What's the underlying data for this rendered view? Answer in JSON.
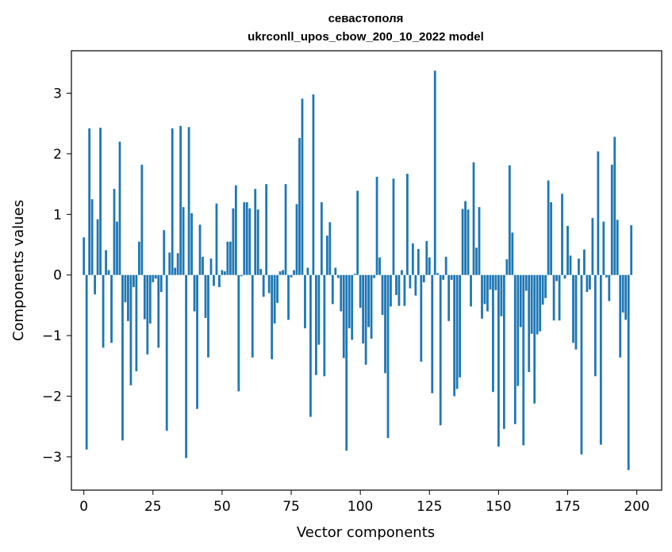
{
  "chart_data": {
    "type": "bar",
    "title": "севастополя",
    "subtitle": "ukrconll_upos_cbow_200_10_2022 model",
    "xlabel": "Vector components",
    "ylabel": "Components values",
    "xlim": [
      -4.5,
      209
    ],
    "ylim": [
      -3.55,
      3.7
    ],
    "xticks": [
      0,
      25,
      50,
      75,
      100,
      125,
      150,
      175,
      200
    ],
    "yticks": [
      -3,
      -2,
      -1,
      0,
      1,
      2,
      3
    ],
    "ytick_labels": [
      "−3",
      "−2",
      "−1",
      "0",
      "1",
      "2",
      "3"
    ],
    "bar_color": "#1f77b4",
    "values": [
      0.62,
      -2.88,
      2.42,
      1.25,
      -0.32,
      0.92,
      2.43,
      -1.2,
      0.41,
      0.08,
      -1.12,
      1.42,
      0.88,
      2.2,
      -2.73,
      -0.45,
      -0.76,
      -1.82,
      -0.2,
      -1.59,
      0.55,
      1.82,
      -0.73,
      -1.31,
      -0.8,
      -0.12,
      -0.06,
      -1.2,
      -0.28,
      0.74,
      -2.57,
      0.37,
      2.42,
      0.12,
      0.36,
      2.46,
      1.12,
      -3.02,
      2.44,
      1.02,
      -0.6,
      -2.21,
      0.83,
      0.3,
      -0.71,
      -1.36,
      0.27,
      -0.18,
      1.18,
      -0.2,
      0.08,
      0.06,
      0.55,
      0.55,
      1.1,
      1.48,
      -1.92,
      -0.02,
      1.2,
      1.2,
      1.1,
      -1.36,
      1.42,
      1.08,
      0.1,
      -0.36,
      1.5,
      -0.3,
      -1.39,
      -0.8,
      -0.46,
      0.06,
      0.08,
      1.5,
      -0.74,
      -0.04,
      0.08,
      1.17,
      2.26,
      2.91,
      -0.88,
      0.12,
      -2.34,
      2.98,
      -1.65,
      -1.15,
      1.2,
      -1.67,
      0.65,
      0.87,
      -0.48,
      0.12,
      -0.05,
      -0.6,
      -1.37,
      -2.9,
      -0.88,
      -1.07,
      0.02,
      1.39,
      -0.54,
      -1.13,
      -1.48,
      -0.86,
      -1.05,
      -0.05,
      1.62,
      0.29,
      -0.66,
      -1.62,
      -2.69,
      -0.52,
      1.59,
      -0.33,
      -0.51,
      0.08,
      -0.51,
      1.67,
      -0.22,
      0.52,
      -0.34,
      0.43,
      -1.43,
      -0.12,
      0.56,
      0.29,
      -1.95,
      3.37,
      0.03,
      -2.48,
      -0.08,
      0.3,
      -0.76,
      -0.08,
      -2.0,
      -1.88,
      -1.69,
      1.09,
      1.22,
      1.08,
      -0.52,
      1.86,
      0.45,
      1.12,
      -0.72,
      -0.48,
      -0.6,
      -0.24,
      -1.93,
      -0.25,
      -2.83,
      -0.68,
      -2.54,
      0.26,
      1.81,
      0.7,
      -2.46,
      -1.83,
      -0.86,
      -2.81,
      -0.26,
      -1.6,
      -0.97,
      -2.12,
      -0.98,
      -0.93,
      -0.49,
      -0.38,
      1.56,
      1.2,
      -0.75,
      -0.1,
      -0.75,
      1.34,
      -0.06,
      0.81,
      0.32,
      -1.12,
      -1.23,
      0.27,
      -2.96,
      0.42,
      -0.28,
      -0.24,
      0.94,
      -1.67,
      2.04,
      -2.8,
      0.88,
      -0.04,
      -0.43,
      1.82,
      2.28,
      0.91,
      -1.36,
      -0.62,
      -0.74,
      -3.22,
      0.82
    ]
  }
}
